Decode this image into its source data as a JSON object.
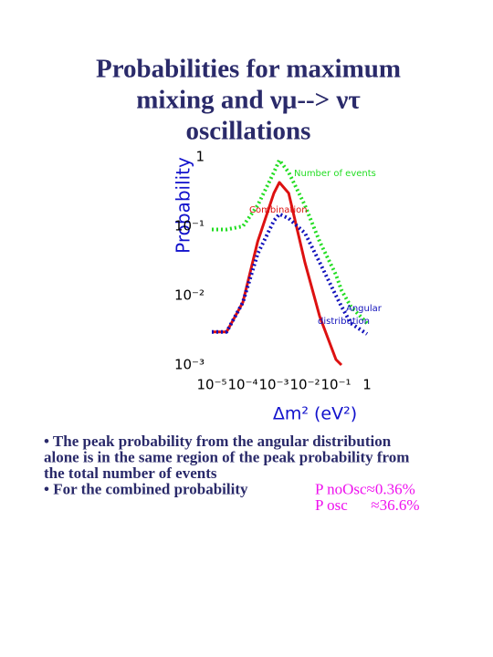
{
  "chart_data": {
    "type": "line",
    "title_lines": [
      "Probabilities for maximum",
      "mixing and νμ--> ντ",
      "oscillations"
    ],
    "y_label": "Probability",
    "x_label": "Δm² (eV²)",
    "log_x": true,
    "log_y": true,
    "grid": false,
    "xlim": [
      1e-05,
      1
    ],
    "ylim": [
      0.001,
      1
    ],
    "xticks": [
      {
        "value": 1e-05,
        "label": "10⁻⁵"
      },
      {
        "value": 0.0001,
        "label": "10⁻⁴"
      },
      {
        "value": 0.001,
        "label": "10⁻³"
      },
      {
        "value": 0.01,
        "label": "10⁻²"
      },
      {
        "value": 0.1,
        "label": "10⁻¹"
      },
      1
    ],
    "yticks": [
      {
        "value": 0.001,
        "label": "10⁻³"
      },
      {
        "value": 0.01,
        "label": "10⁻²"
      },
      {
        "value": 0.1,
        "label": "10⁻¹"
      },
      1
    ],
    "x": [
      1e-05,
      3e-05,
      0.0001,
      0.0003,
      0.001,
      0.0015,
      0.003,
      0.01,
      0.03,
      0.1,
      0.15,
      0.3,
      1
    ],
    "series": [
      {
        "name": "Number of events",
        "color": "#22dd22",
        "dash": "dotted",
        "values": [
          0.09,
          0.09,
          0.1,
          0.2,
          0.6,
          0.9,
          0.6,
          0.2,
          0.06,
          0.02,
          0.012,
          0.007,
          0.004
        ]
      },
      {
        "name": "Combination",
        "color": "#dd1111",
        "dash": "solid",
        "values": [
          0.003,
          0.003,
          0.008,
          0.06,
          0.3,
          0.43,
          0.3,
          0.03,
          0.005,
          0.0012,
          0.001,
          null,
          null
        ]
      },
      {
        "name": "Angular distribution",
        "color": "#1111bb",
        "dash": "dotted",
        "values": [
          0.003,
          0.003,
          0.008,
          0.04,
          0.12,
          0.15,
          0.13,
          0.08,
          0.03,
          0.01,
          0.007,
          0.004,
          0.0028
        ]
      }
    ],
    "annotations": [
      "Number of events",
      "Combination",
      "Angular",
      "distribution"
    ]
  },
  "notes": {
    "lines": [
      "• The peak probability from the angular distribution",
      "alone is in the same region of the peak probability from",
      "the total number of events",
      "• For the combined probability"
    ],
    "results": [
      "P noOsc≈0.36%",
      "P osc      ≈36.6%"
    ],
    "results_color": "#ee11ee"
  }
}
